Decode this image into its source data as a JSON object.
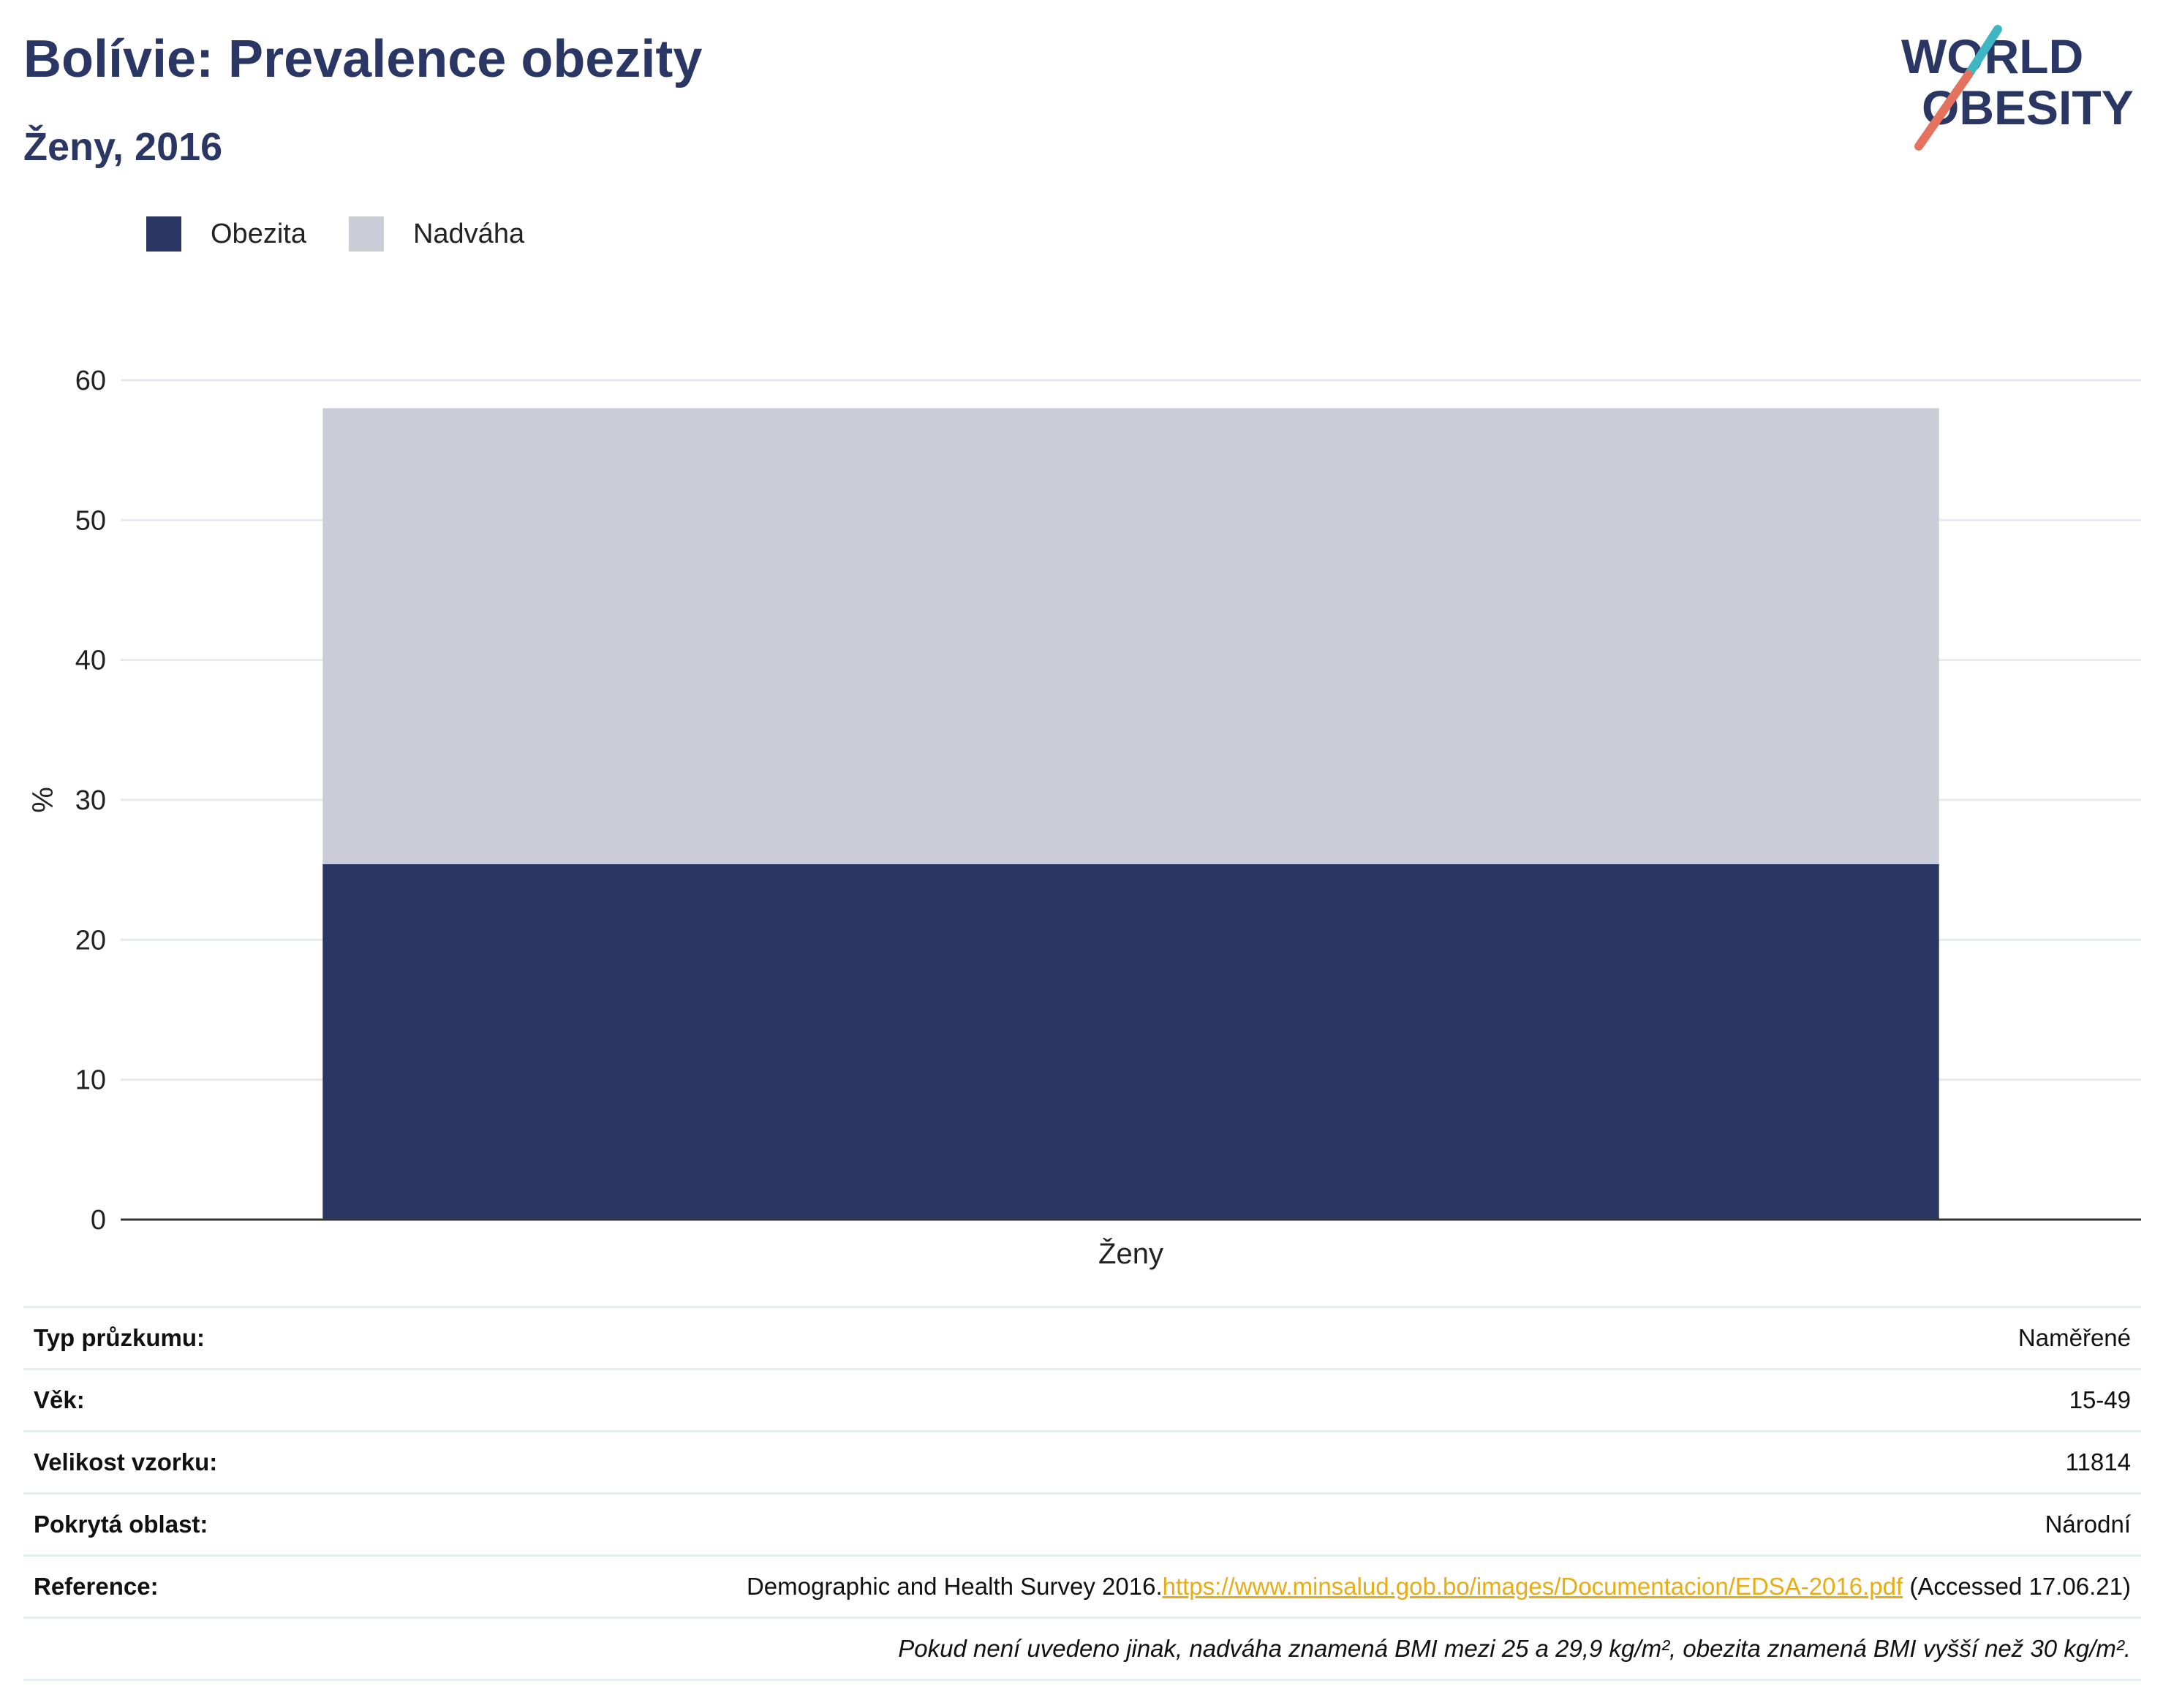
{
  "header": {
    "title": "Bolívie: Prevalence obezity",
    "subtitle": "Ženy, 2016",
    "logo_text": "WORLD OBESITY"
  },
  "legend": [
    {
      "label": "Obezita",
      "color": "#2a3663"
    },
    {
      "label": "Nadváha",
      "color": "#cacdd8"
    }
  ],
  "chart_data": {
    "type": "bar",
    "stacked": true,
    "categories": [
      "Ženy"
    ],
    "series": [
      {
        "name": "Obezita",
        "values": [
          25.4
        ],
        "color": "#2a3663"
      },
      {
        "name": "Nadváha",
        "values": [
          32.6
        ],
        "color": "#cacdd8"
      }
    ],
    "ylabel": "%",
    "xlabel": "",
    "ylim": [
      0,
      60
    ],
    "yticks": [
      0,
      10,
      20,
      30,
      40,
      50,
      60
    ],
    "grid": true,
    "legend_position": "top-left"
  },
  "info": {
    "rows": [
      {
        "key": "Typ průzkumu:",
        "value": "Naměřené"
      },
      {
        "key": "Věk:",
        "value": "15-49"
      },
      {
        "key": "Velikost vzorku:",
        "value": "11814"
      },
      {
        "key": "Pokrytá oblast:",
        "value": "Národní"
      }
    ],
    "reference": {
      "key": "Reference:",
      "text": "Demographic and Health Survey 2016.",
      "link": "https://www.minsalud.gob.bo/images/Documentacion/EDSA-2016.pdf",
      "suffix": " (Accessed 17.06.21)"
    },
    "footnote": "Pokud není uvedeno jinak, nadváha znamená BMI mezi 25 a 29,9 kg/m², obezita znamená BMI vyšší než 30 kg/m²."
  }
}
